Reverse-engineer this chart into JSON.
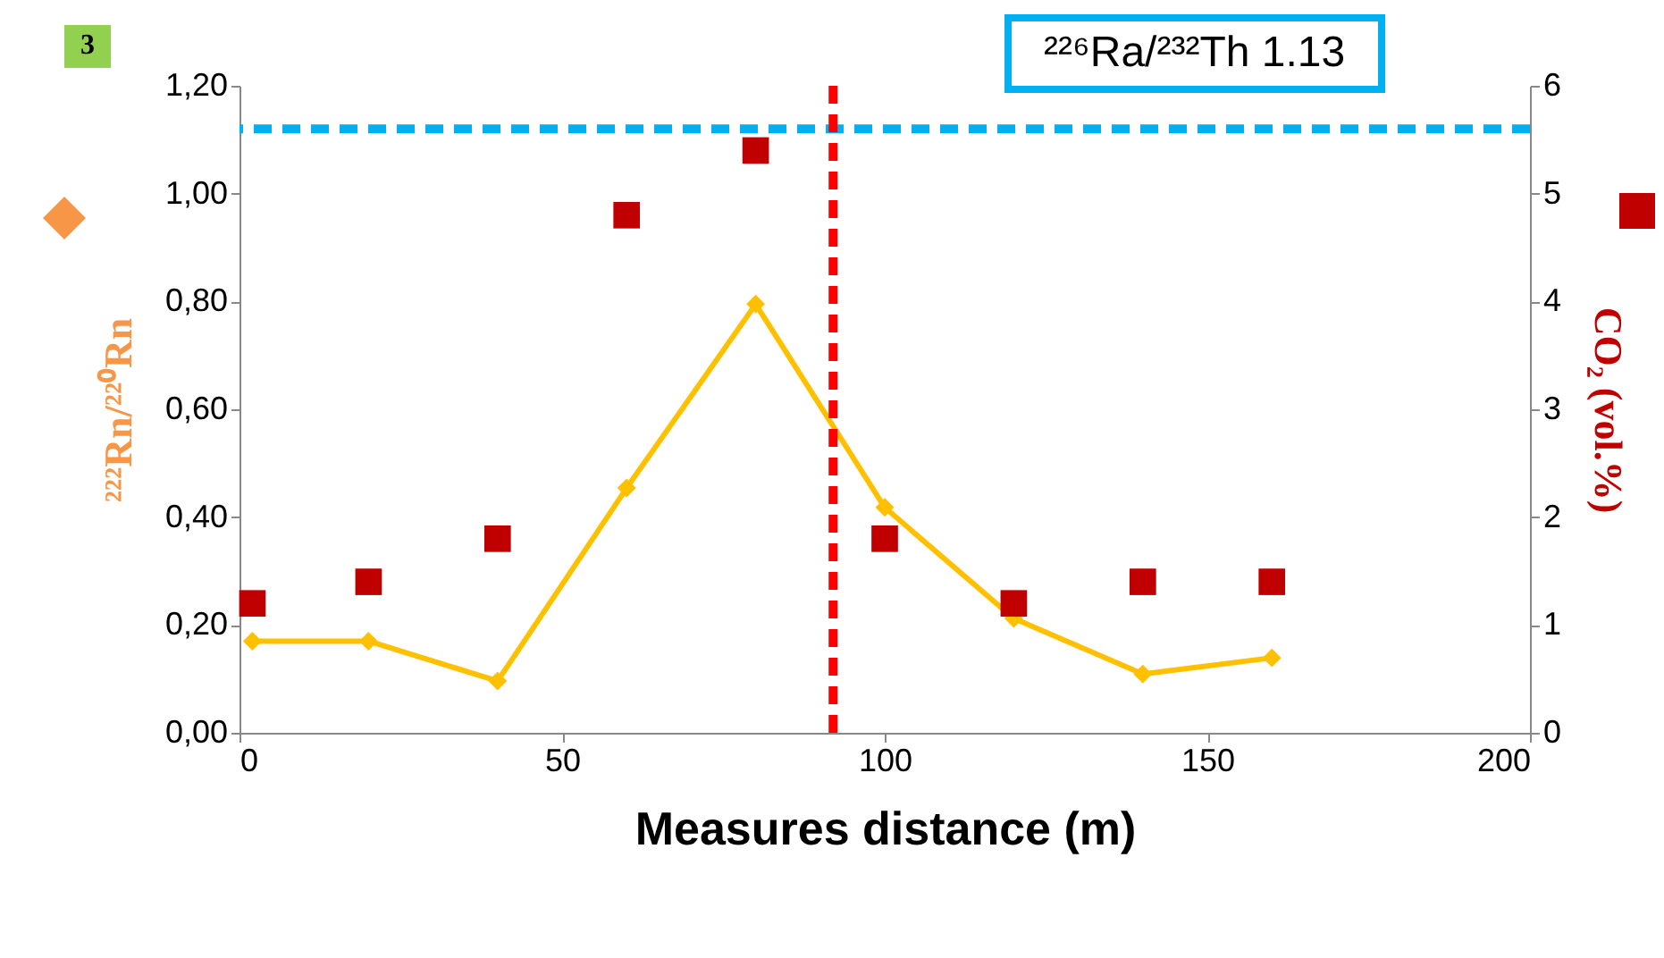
{
  "chart_data": {
    "type": "line",
    "xlabel": "Measures distance (m)",
    "ylabel": "²²²Rn/²²⁰Rn",
    "y2label": "CO₂ (vol.%)",
    "annotations": [
      "3",
      "²²⁶Ra/²³²Th 1.13"
    ],
    "x": [
      2,
      20,
      40,
      60,
      80,
      100,
      120,
      140,
      160
    ],
    "series": [
      {
        "color": "#ffc000",
        "marker": "diamond",
        "values": [
          0.17,
          0.17,
          0.096,
          0.454,
          0.795,
          0.418,
          0.212,
          0.109,
          0.139
        ]
      },
      {
        "type": "scatter",
        "axis": "y2",
        "color": "#c00000",
        "marker": "square",
        "values": [
          1.2,
          1.4,
          1.8,
          4.8,
          5.4,
          1.8,
          1.2,
          1.4,
          1.4
        ]
      }
    ],
    "xlim": [
      0,
      200
    ],
    "xticks": [
      0,
      50,
      100,
      150,
      200
    ],
    "ylim": [
      0,
      1.2
    ],
    "yticks": [
      {
        "value": 0,
        "label": "0,00"
      },
      {
        "value": 0.2,
        "label": "0,20"
      },
      {
        "value": 0.4,
        "label": "0,40"
      },
      {
        "value": 0.6,
        "label": "0,60"
      },
      {
        "value": 0.8,
        "label": "0,80"
      },
      {
        "value": 1,
        "label": "1,00"
      },
      {
        "value": 1.2,
        "label": "1,20"
      }
    ],
    "y2lim": [
      0,
      6
    ],
    "y2ticks": [
      0,
      1,
      2,
      3,
      4,
      5,
      6
    ],
    "ref_lines": [
      {
        "axis": "y",
        "value": 1.12,
        "color": "#00b0f0",
        "line_style": "dashed"
      },
      {
        "axis": "x",
        "value": 92,
        "color": "#ff0000",
        "line_style": "dashed"
      }
    ],
    "grid": false,
    "legend": false
  }
}
